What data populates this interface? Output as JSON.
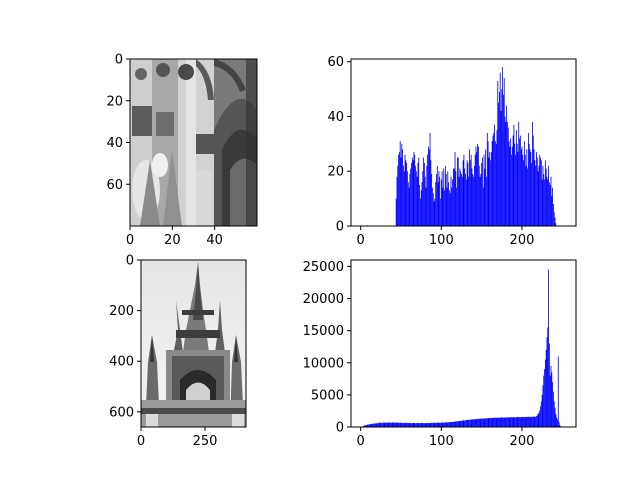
{
  "figure": {
    "background": "#ffffff",
    "bar_color": "#0000ff",
    "axis_color": "#000000"
  },
  "chart_data": [
    {
      "type": "image",
      "name": "",
      "content": "grayscale close-up crop of gothic stone carving (dark arches, pinnacles)",
      "xlim": [
        0,
        60
      ],
      "ylim": [
        80,
        0
      ],
      "x_ticks": [
        0,
        20,
        40
      ],
      "y_ticks": [
        0,
        20,
        40,
        60
      ]
    },
    {
      "type": "bar",
      "name": "",
      "x_range": [
        0,
        255
      ],
      "xlim": [
        -12,
        267
      ],
      "ylim": [
        0,
        61
      ],
      "x_ticks": [
        0,
        100,
        200
      ],
      "y_ticks": [
        0,
        20,
        40,
        60
      ],
      "series": [
        {
          "name": "",
          "color": "#0000ff",
          "x_start": 0,
          "values": [
            0,
            0,
            0,
            0,
            0,
            0,
            0,
            0,
            0,
            0,
            0,
            0,
            0,
            0,
            0,
            0,
            0,
            0,
            0,
            0,
            0,
            0,
            0,
            0,
            0,
            0,
            0,
            0,
            0,
            0,
            0,
            0,
            0,
            0,
            0,
            0,
            0,
            0,
            0,
            0,
            0,
            0,
            0,
            0,
            10,
            18,
            22,
            26,
            27,
            31,
            25,
            30,
            28,
            22,
            20,
            26,
            24,
            23,
            20,
            16,
            14,
            19,
            21,
            23,
            25,
            24,
            27,
            26,
            22,
            20,
            18,
            23,
            25,
            15,
            10,
            13,
            16,
            20,
            25,
            23,
            18,
            14,
            22,
            26,
            29,
            28,
            34,
            24,
            19,
            14,
            12,
            9,
            10,
            16,
            19,
            22,
            16,
            20,
            18,
            10,
            17,
            20,
            14,
            21,
            13,
            22,
            19,
            14,
            20,
            16,
            13,
            12,
            18,
            14,
            17,
            21,
            21,
            27,
            20,
            14,
            25,
            25,
            18,
            21,
            20,
            19,
            18,
            24,
            26,
            21,
            19,
            17,
            24,
            23,
            18,
            28,
            24,
            26,
            21,
            19,
            18,
            22,
            26,
            29,
            27,
            30,
            29,
            22,
            18,
            19,
            23,
            25,
            14,
            26,
            21,
            28,
            18,
            34,
            31,
            25,
            27,
            24,
            27,
            31,
            33,
            34,
            37,
            31,
            30,
            35,
            53,
            45,
            49,
            56,
            42,
            50,
            58,
            48,
            54,
            40,
            38,
            44,
            38,
            36,
            31,
            29,
            32,
            26,
            29,
            33,
            37,
            30,
            26,
            35,
            30,
            27,
            38,
            32,
            33,
            28,
            29,
            26,
            24,
            31,
            26,
            22,
            28,
            21,
            34,
            30,
            28,
            27,
            23,
            38,
            33,
            28,
            24,
            22,
            27,
            25,
            20,
            22,
            26,
            25,
            24,
            17,
            22,
            19,
            17,
            24,
            21,
            18,
            17,
            22,
            16,
            15,
            18,
            11,
            14,
            8,
            5,
            3,
            1,
            0,
            0,
            0,
            0,
            0,
            0,
            0,
            0,
            0,
            0,
            0,
            0
          ]
        }
      ]
    },
    {
      "type": "image",
      "name": "",
      "content": "grayscale photo of a gothic spire monument with pinnacles against a pale sky",
      "xlim": [
        0,
        410
      ],
      "ylim": [
        660,
        0
      ],
      "x_ticks": [
        0,
        250
      ],
      "y_ticks": [
        0,
        200,
        400,
        600
      ]
    },
    {
      "type": "bar",
      "name": "",
      "x_range": [
        0,
        255
      ],
      "xlim": [
        -12,
        267
      ],
      "ylim": [
        0,
        26000
      ],
      "x_ticks": [
        0,
        100,
        200
      ],
      "y_ticks": [
        0,
        5000,
        10000,
        15000,
        20000,
        25000
      ],
      "series": [
        {
          "name": "",
          "color": "#0000ff",
          "x_start": 0,
          "values": [
            0,
            40,
            80,
            120,
            200,
            300,
            250,
            350,
            300,
            400,
            380,
            450,
            420,
            500,
            480,
            520,
            450,
            600,
            550,
            500,
            620,
            580,
            650,
            600,
            700,
            640,
            660,
            600,
            700,
            680,
            650,
            720,
            680,
            700,
            660,
            720,
            700,
            680,
            650,
            700,
            720,
            680,
            650,
            700,
            680,
            640,
            700,
            680,
            650,
            620,
            700,
            660,
            640,
            600,
            680,
            650,
            620,
            640,
            660,
            600,
            620,
            640,
            600,
            580,
            620,
            640,
            600,
            620,
            580,
            600,
            640,
            620,
            600,
            580,
            620,
            600,
            640,
            620,
            600,
            580,
            620,
            640,
            600,
            620,
            650,
            600,
            640,
            620,
            660,
            640,
            620,
            680,
            650,
            640,
            660,
            680,
            700,
            660,
            640,
            680,
            700,
            720,
            680,
            700,
            680,
            720,
            740,
            700,
            720,
            760,
            740,
            780,
            760,
            800,
            780,
            820,
            800,
            840,
            860,
            880,
            900,
            880,
            920,
            940,
            960,
            980,
            1000,
            1020,
            1040,
            1000,
            1060,
            1080,
            1100,
            1120,
            1080,
            1140,
            1160,
            1120,
            1180,
            1200,
            1180,
            1220,
            1200,
            1240,
            1260,
            1240,
            1280,
            1260,
            1300,
            1280,
            1320,
            1300,
            1340,
            1320,
            1300,
            1360,
            1340,
            1380,
            1360,
            1400,
            1380,
            1420,
            1400,
            1380,
            1420,
            1440,
            1420,
            1460,
            1440,
            1420,
            1460,
            1480,
            1460,
            1440,
            1480,
            1500,
            1480,
            1460,
            1500,
            1480,
            1460,
            1500,
            1520,
            1500,
            1480,
            1520,
            1500,
            1540,
            1520,
            1500,
            1540,
            1520,
            1500,
            1540,
            1560,
            1540,
            1520,
            1560,
            1540,
            1520,
            1560,
            1580,
            1560,
            1540,
            1580,
            1560,
            1540,
            1580,
            1600,
            1580,
            1560,
            1600,
            1580,
            1600,
            1620,
            1600,
            1580,
            1600,
            1700,
            1800,
            2000,
            2200,
            2600,
            3200,
            4000,
            5000,
            6500,
            8000,
            9000,
            10500,
            12000,
            14000,
            15500,
            24500,
            13000,
            8000,
            9500,
            8500,
            7000,
            5500,
            4000,
            3000,
            2000,
            1500,
            1200,
            11000,
            800,
            300,
            100,
            0,
            0,
            0,
            0
          ]
        }
      ]
    }
  ]
}
